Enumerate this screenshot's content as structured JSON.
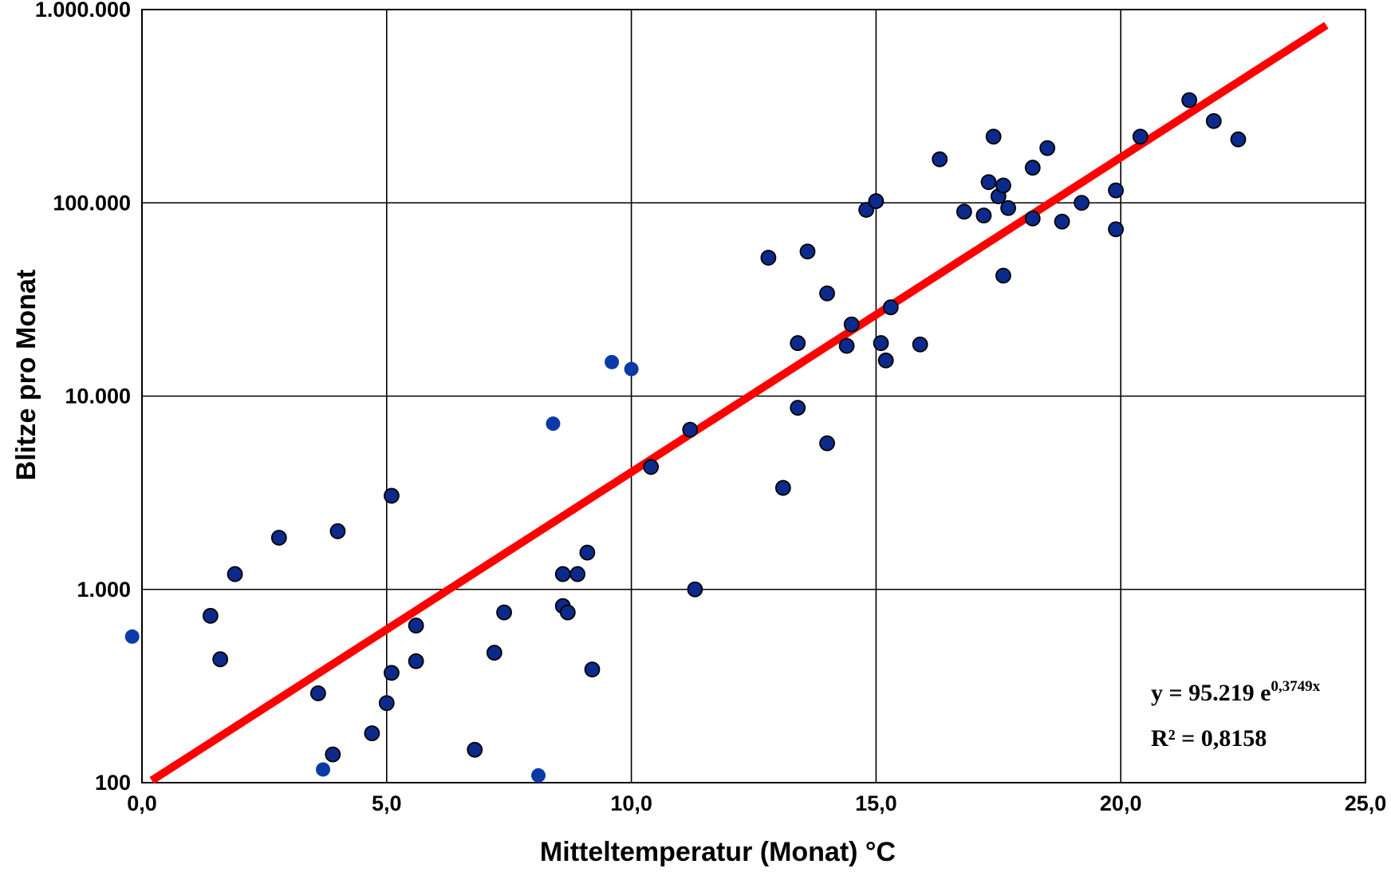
{
  "chart_data": {
    "type": "scatter",
    "xlabel": "Mitteltemperatur (Monat) °C",
    "ylabel": "Blitze pro Monat",
    "xlim": [
      0,
      25
    ],
    "ylim": [
      100,
      1000000
    ],
    "y_scale": "log",
    "grid": true,
    "x_ticks": [
      0,
      5,
      10,
      15,
      20,
      25
    ],
    "x_tick_labels": [
      "0,0",
      "5,0",
      "10,0",
      "15,0",
      "20,0",
      "25,0"
    ],
    "y_ticks": [
      100,
      1000,
      10000,
      100000,
      1000000
    ],
    "y_tick_labels": [
      "100",
      "1.000",
      "10.000",
      "100.000",
      "1.000.000"
    ],
    "series": [
      {
        "marker_color": "#0b2a8c",
        "points": [
          [
            1.4,
            730
          ],
          [
            1.6,
            435
          ],
          [
            1.9,
            1200
          ],
          [
            2.8,
            1850
          ],
          [
            3.6,
            290
          ],
          [
            3.9,
            140
          ],
          [
            4.0,
            2000
          ],
          [
            4.7,
            180
          ],
          [
            5.1,
            3050
          ],
          [
            5.1,
            370
          ],
          [
            5.0,
            258
          ],
          [
            5.6,
            650
          ],
          [
            5.6,
            425
          ],
          [
            6.8,
            148
          ],
          [
            7.2,
            470
          ],
          [
            7.4,
            760
          ],
          [
            8.6,
            1200
          ],
          [
            8.6,
            820
          ],
          [
            8.7,
            760
          ],
          [
            8.9,
            1200
          ],
          [
            9.1,
            1550
          ],
          [
            9.2,
            385
          ],
          [
            10.4,
            4300
          ],
          [
            11.2,
            6700
          ],
          [
            11.3,
            1000
          ],
          [
            12.8,
            52000
          ],
          [
            13.1,
            3350
          ],
          [
            13.4,
            18800
          ],
          [
            13.4,
            8700
          ],
          [
            13.6,
            56000
          ],
          [
            14.0,
            34000
          ],
          [
            14.0,
            5700
          ],
          [
            14.4,
            18200
          ],
          [
            14.5,
            23500
          ],
          [
            14.8,
            92000
          ],
          [
            15.0,
            102000
          ],
          [
            15.1,
            18800
          ],
          [
            15.2,
            15300
          ],
          [
            15.3,
            28800
          ],
          [
            15.9,
            18500
          ],
          [
            16.3,
            168000
          ],
          [
            16.8,
            90000
          ],
          [
            17.2,
            86000
          ],
          [
            17.3,
            128000
          ],
          [
            17.4,
            220000
          ],
          [
            17.5,
            108000
          ],
          [
            17.6,
            42000
          ],
          [
            17.6,
            123000
          ],
          [
            17.7,
            94000
          ],
          [
            18.2,
            152000
          ],
          [
            18.2,
            83000
          ],
          [
            18.5,
            192000
          ],
          [
            18.8,
            80000
          ],
          [
            19.2,
            100000
          ],
          [
            19.9,
            116000
          ],
          [
            19.9,
            73000
          ],
          [
            20.4,
            220000
          ],
          [
            21.4,
            340000
          ],
          [
            21.9,
            265000
          ],
          [
            22.4,
            213000
          ]
        ]
      },
      {
        "marker_color": "#0b3aa8",
        "points": [
          [
            -0.2,
            570
          ],
          [
            3.7,
            117
          ],
          [
            8.1,
            109
          ],
          [
            8.4,
            7200
          ],
          [
            9.6,
            15000
          ],
          [
            10.0,
            13800
          ]
        ]
      }
    ],
    "trendline": {
      "type": "exponential",
      "a": 95.219,
      "b": 0.3749,
      "x_range": [
        0.2,
        24.2
      ],
      "color": "#ff0000"
    },
    "annotations": {
      "equation_base": "y = 95.219 e",
      "equation_exp": "0,3749x",
      "r_squared": "R² = 0,8158"
    }
  }
}
